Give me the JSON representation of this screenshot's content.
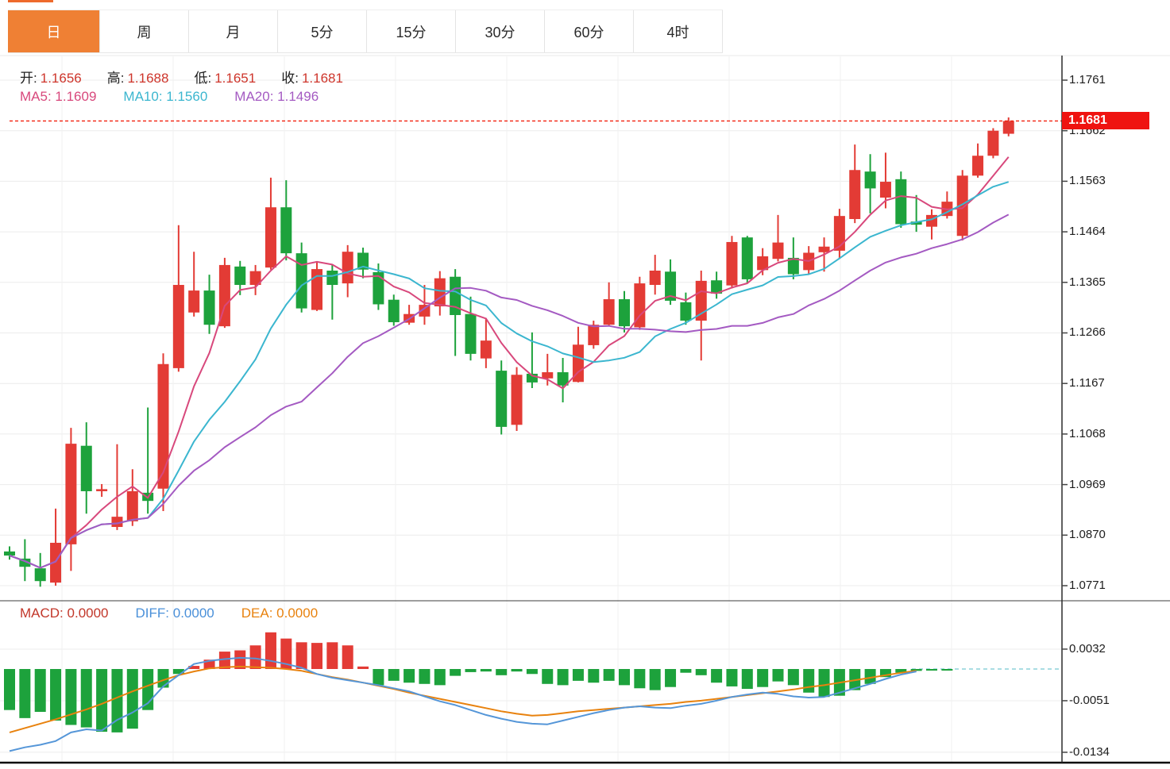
{
  "toolbar": {
    "tabs": [
      {
        "label": "日",
        "active": true
      },
      {
        "label": "周",
        "active": false
      },
      {
        "label": "月",
        "active": false
      },
      {
        "label": "5分",
        "active": false
      },
      {
        "label": "15分",
        "active": false
      },
      {
        "label": "30分",
        "active": false
      },
      {
        "label": "60分",
        "active": false
      },
      {
        "label": "4时",
        "active": false
      }
    ],
    "active_color": "#ef8034"
  },
  "legend": {
    "ohlc": [
      {
        "label": "开:",
        "value": "1.1656"
      },
      {
        "label": "高:",
        "value": "1.1688"
      },
      {
        "label": "低:",
        "value": "1.1651"
      },
      {
        "label": "收:",
        "value": "1.1681"
      }
    ],
    "ma": [
      {
        "label": "MA5:",
        "value": "1.1609",
        "color": "#d8487c"
      },
      {
        "label": "MA10:",
        "value": "1.1560",
        "color": "#3bb6cf"
      },
      {
        "label": "MA20:",
        "value": "1.1496",
        "color": "#a45ac2"
      }
    ]
  },
  "macd_legend": [
    {
      "label": "MACD:",
      "value": "0.0000",
      "color": "#c2372a"
    },
    {
      "label": "DIFF:",
      "value": "0.0000",
      "color": "#4a90d9"
    },
    {
      "label": "DEA:",
      "value": "0.0000",
      "color": "#e8820e"
    }
  ],
  "price_tag": {
    "value": "1.1681",
    "bg_color": "#ef1310"
  },
  "axes": {
    "price_labels": [
      "1.1761",
      "1.1662",
      "1.1563",
      "1.1464",
      "1.1365",
      "1.1266",
      "1.1167",
      "1.1068",
      "1.0969",
      "1.0870",
      "1.0771"
    ],
    "macd_labels": [
      "0.0032",
      "-0.0051",
      "-0.0134"
    ]
  },
  "chart_data": {
    "type": "candlestick",
    "up_color": "#e33b35",
    "down_color": "#1da23c",
    "grid": true,
    "price_ticks": [
      1.1761,
      1.1662,
      1.1563,
      1.1464,
      1.1365,
      1.1266,
      1.1167,
      1.1068,
      1.0969,
      1.087,
      1.0771
    ],
    "last_price": 1.1681,
    "candles": [
      [
        1.0838,
        1.0848,
        1.0822,
        1.083
      ],
      [
        1.0824,
        1.0862,
        1.078,
        1.0808
      ],
      [
        1.0805,
        1.0835,
        1.0769,
        1.078
      ],
      [
        1.0777,
        1.0922,
        1.0771,
        1.0855
      ],
      [
        1.0852,
        1.108,
        1.08,
        1.1049
      ],
      [
        1.1045,
        1.1091,
        1.0912,
        1.0956
      ],
      [
        1.0956,
        1.097,
        1.0945,
        1.096
      ],
      [
        1.0886,
        1.1048,
        1.088,
        1.0906
      ],
      [
        1.0897,
        1.0999,
        1.0888,
        1.0956
      ],
      [
        1.0953,
        1.112,
        1.0912,
        1.0937
      ],
      [
        1.0961,
        1.1226,
        1.0917,
        1.1205
      ],
      [
        1.1197,
        1.1477,
        1.119,
        1.136
      ],
      [
        1.1306,
        1.1425,
        1.1298,
        1.1349
      ],
      [
        1.1349,
        1.138,
        1.1264,
        1.1282
      ],
      [
        1.1279,
        1.1413,
        1.1276,
        1.1399
      ],
      [
        1.1396,
        1.1407,
        1.134,
        1.136
      ],
      [
        1.136,
        1.1399,
        1.134,
        1.1387
      ],
      [
        1.1394,
        1.157,
        1.139,
        1.1512
      ],
      [
        1.1512,
        1.1565,
        1.1408,
        1.1422
      ],
      [
        1.1422,
        1.1443,
        1.1306,
        1.1314
      ],
      [
        1.1311,
        1.1404,
        1.1309,
        1.1391
      ],
      [
        1.1388,
        1.1399,
        1.1292,
        1.136
      ],
      [
        1.1363,
        1.1438,
        1.1336,
        1.1425
      ],
      [
        1.1423,
        1.1433,
        1.1373,
        1.139
      ],
      [
        1.1385,
        1.1402,
        1.1311,
        1.1322
      ],
      [
        1.1331,
        1.1341,
        1.128,
        1.1287
      ],
      [
        1.1286,
        1.1321,
        1.1282,
        1.1303
      ],
      [
        1.1298,
        1.136,
        1.1282,
        1.1321
      ],
      [
        1.1318,
        1.1387,
        1.13,
        1.1373
      ],
      [
        1.1376,
        1.1391,
        1.1221,
        1.1301
      ],
      [
        1.1303,
        1.1337,
        1.1212,
        1.1225
      ],
      [
        1.1216,
        1.1295,
        1.1197,
        1.1251
      ],
      [
        1.1192,
        1.1212,
        1.1067,
        1.1082
      ],
      [
        1.1086,
        1.1199,
        1.1074,
        1.1184
      ],
      [
        1.1186,
        1.1267,
        1.1158,
        1.1169
      ],
      [
        1.1177,
        1.1225,
        1.1163,
        1.1189
      ],
      [
        1.1189,
        1.1217,
        1.113,
        1.1163
      ],
      [
        1.117,
        1.1278,
        1.1169,
        1.1243
      ],
      [
        1.1242,
        1.129,
        1.1235,
        1.1282
      ],
      [
        1.1282,
        1.1365,
        1.128,
        1.1332
      ],
      [
        1.1332,
        1.1348,
        1.1267,
        1.1279
      ],
      [
        1.1277,
        1.1376,
        1.1272,
        1.1363
      ],
      [
        1.136,
        1.1419,
        1.1341,
        1.1388
      ],
      [
        1.1386,
        1.141,
        1.1321,
        1.1329
      ],
      [
        1.1326,
        1.1345,
        1.1282,
        1.129
      ],
      [
        1.129,
        1.1388,
        1.1212,
        1.1368
      ],
      [
        1.1369,
        1.1386,
        1.1333,
        1.1343
      ],
      [
        1.1359,
        1.1456,
        1.1353,
        1.1444
      ],
      [
        1.1453,
        1.1456,
        1.1363,
        1.1371
      ],
      [
        1.1389,
        1.1432,
        1.1379,
        1.1416
      ],
      [
        1.1411,
        1.1497,
        1.1406,
        1.1443
      ],
      [
        1.1413,
        1.1453,
        1.1371,
        1.1381
      ],
      [
        1.1389,
        1.1436,
        1.138,
        1.1423
      ],
      [
        1.1424,
        1.1453,
        1.1386,
        1.1435
      ],
      [
        1.1427,
        1.1509,
        1.1411,
        1.1495
      ],
      [
        1.1489,
        1.1635,
        1.1481,
        1.1585
      ],
      [
        1.1582,
        1.1616,
        1.15,
        1.1549
      ],
      [
        1.1531,
        1.1619,
        1.151,
        1.1562
      ],
      [
        1.1567,
        1.1582,
        1.1472,
        1.1479
      ],
      [
        1.1484,
        1.1536,
        1.1464,
        1.1478
      ],
      [
        1.1474,
        1.1508,
        1.1449,
        1.1497
      ],
      [
        1.1495,
        1.1543,
        1.149,
        1.1523
      ],
      [
        1.1456,
        1.1585,
        1.1447,
        1.1574
      ],
      [
        1.1574,
        1.1637,
        1.157,
        1.1613
      ],
      [
        1.1613,
        1.1667,
        1.1608,
        1.1662
      ],
      [
        1.1656,
        1.1688,
        1.1651,
        1.1681
      ]
    ],
    "ma": {
      "periods": [
        5,
        10,
        20
      ],
      "MA5": 1.1609,
      "MA10": 1.156,
      "MA20": 1.1496,
      "colors": {
        "MA5": "#d8487c",
        "MA10": "#3bb6cf",
        "MA20": "#a45ac2"
      }
    },
    "macd": {
      "ticks": [
        0.0032,
        -0.0051,
        -0.0134
      ],
      "value_scale": 0.0001,
      "macd_value": 0.0,
      "diff_value": 0.0,
      "dea_value": 0.0,
      "histogram": [
        -66,
        -79,
        -69,
        -83,
        -90,
        -94,
        -101,
        -102,
        -96,
        -66,
        -30,
        -8,
        5,
        15,
        28,
        30,
        38,
        59,
        49,
        43,
        42,
        43,
        38,
        4,
        -26,
        -19,
        -22,
        -24,
        -26,
        -11,
        -5,
        -4,
        -10,
        -4,
        -8,
        -24,
        -26,
        -19,
        -22,
        -19,
        -26,
        -31,
        -34,
        -29,
        -6,
        -10,
        -22,
        -28,
        -32,
        -29,
        -20,
        -26,
        -38,
        -45,
        -43,
        -34,
        -24,
        -13,
        -6,
        -3,
        -1,
        -1,
        0,
        0,
        0,
        0
      ],
      "diff": [
        -132,
        -126,
        -122,
        -116,
        -102,
        -97,
        -99,
        -82,
        -70,
        -55,
        -28,
        -10,
        8,
        13,
        16,
        18,
        17,
        13,
        8,
        2,
        -8,
        -14,
        -18,
        -22,
        -26,
        -31,
        -36,
        -44,
        -52,
        -58,
        -66,
        -74,
        -80,
        -85,
        -88,
        -89,
        -83,
        -77,
        -71,
        -66,
        -62,
        -60,
        -62,
        -63,
        -59,
        -56,
        -51,
        -45,
        -41,
        -38,
        -40,
        -44,
        -46,
        -45,
        -38,
        -31,
        -24,
        -16,
        -9,
        -4,
        -2,
        -1,
        0,
        0,
        0,
        0
      ],
      "dea": [
        -102,
        -95,
        -88,
        -81,
        -73,
        -65,
        -56,
        -46,
        -36,
        -27,
        -18,
        -10,
        -4,
        1,
        3,
        4,
        3,
        2,
        0,
        -3,
        -8,
        -13,
        -17,
        -22,
        -27,
        -32,
        -38,
        -43,
        -48,
        -53,
        -58,
        -63,
        -68,
        -72,
        -75,
        -74,
        -71,
        -68,
        -66,
        -64,
        -62,
        -60,
        -58,
        -56,
        -53,
        -51,
        -48,
        -45,
        -42,
        -39,
        -36,
        -33,
        -29,
        -26,
        -22,
        -18,
        -14,
        -10,
        -6,
        -3,
        -1,
        0,
        0,
        0,
        0,
        0
      ],
      "colors": {
        "diff": "#5596d8",
        "dea": "#e8820e",
        "zero_dash": "#8ed2da"
      }
    }
  }
}
